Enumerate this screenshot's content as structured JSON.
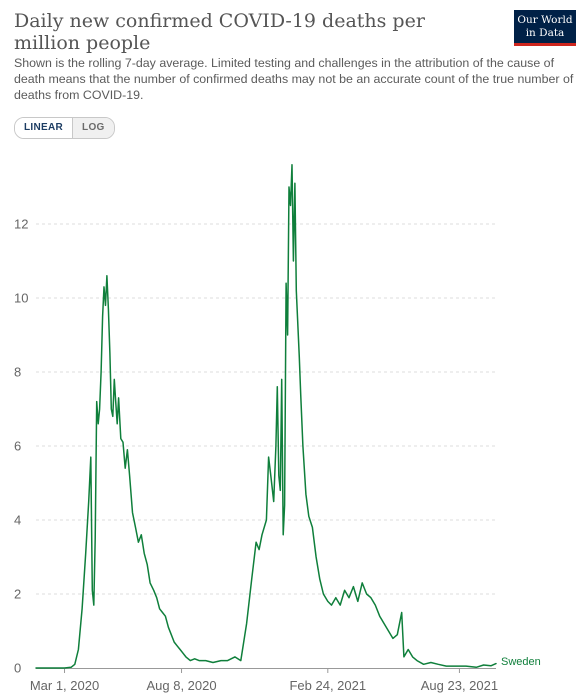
{
  "header": {
    "title": "Daily new confirmed COVID-19 deaths per million people",
    "subtitle": "Shown is the rolling 7-day average. Limited testing and challenges in the attribution of the cause of death means that the number of confirmed deaths may not be an accurate count of the true number of deaths from COVID-19.",
    "logo_line1": "Our World",
    "logo_line2": "in Data"
  },
  "controls": {
    "linear_label": "LINEAR",
    "log_label": "LOG",
    "selected": "LINEAR"
  },
  "colors": {
    "series": "#0f7f3b",
    "grid": "#dddddd",
    "axis": "#666666"
  },
  "chart_data": {
    "type": "line",
    "title": "Daily new confirmed COVID-19 deaths per million people",
    "xlabel": "",
    "ylabel": "",
    "x_range": [
      "2020-01-22",
      "2021-10-12"
    ],
    "ylim": [
      0,
      14
    ],
    "yticks": [
      0,
      2,
      4,
      6,
      8,
      10,
      12
    ],
    "xticks": [
      "Mar 1, 2020",
      "Aug 8, 2020",
      "Feb 24, 2021",
      "Aug 23, 2021"
    ],
    "xtick_dates": [
      "2020-03-01",
      "2020-08-08",
      "2021-02-24",
      "2021-08-23"
    ],
    "grid": "horizontal dashed",
    "legend": "label at end of line",
    "series": [
      {
        "name": "Sweden",
        "points": [
          [
            "2020-01-22",
            0
          ],
          [
            "2020-03-01",
            0
          ],
          [
            "2020-03-10",
            0.02
          ],
          [
            "2020-03-15",
            0.1
          ],
          [
            "2020-03-20",
            0.5
          ],
          [
            "2020-03-25",
            1.6
          ],
          [
            "2020-03-30",
            3.1
          ],
          [
            "2020-04-03",
            4.5
          ],
          [
            "2020-04-06",
            5.7
          ],
          [
            "2020-04-08",
            2.1
          ],
          [
            "2020-04-10",
            1.7
          ],
          [
            "2020-04-12",
            3.5
          ],
          [
            "2020-04-14",
            7.2
          ],
          [
            "2020-04-16",
            6.6
          ],
          [
            "2020-04-18",
            7.0
          ],
          [
            "2020-04-20",
            8.0
          ],
          [
            "2020-04-22",
            9.5
          ],
          [
            "2020-04-24",
            10.3
          ],
          [
            "2020-04-26",
            9.8
          ],
          [
            "2020-04-28",
            10.6
          ],
          [
            "2020-04-30",
            9.7
          ],
          [
            "2020-05-02",
            8.5
          ],
          [
            "2020-05-04",
            7.0
          ],
          [
            "2020-05-06",
            6.8
          ],
          [
            "2020-05-08",
            7.8
          ],
          [
            "2020-05-10",
            7.2
          ],
          [
            "2020-05-12",
            6.6
          ],
          [
            "2020-05-14",
            7.3
          ],
          [
            "2020-05-17",
            6.2
          ],
          [
            "2020-05-20",
            6.1
          ],
          [
            "2020-05-23",
            5.4
          ],
          [
            "2020-05-26",
            5.9
          ],
          [
            "2020-05-29",
            5.2
          ],
          [
            "2020-06-02",
            4.2
          ],
          [
            "2020-06-06",
            3.8
          ],
          [
            "2020-06-10",
            3.4
          ],
          [
            "2020-06-14",
            3.6
          ],
          [
            "2020-06-18",
            3.1
          ],
          [
            "2020-06-22",
            2.8
          ],
          [
            "2020-06-26",
            2.3
          ],
          [
            "2020-07-01",
            2.1
          ],
          [
            "2020-07-05",
            1.9
          ],
          [
            "2020-07-09",
            1.6
          ],
          [
            "2020-07-13",
            1.5
          ],
          [
            "2020-07-17",
            1.4
          ],
          [
            "2020-07-21",
            1.1
          ],
          [
            "2020-07-25",
            0.9
          ],
          [
            "2020-07-29",
            0.7
          ],
          [
            "2020-08-02",
            0.6
          ],
          [
            "2020-08-06",
            0.5
          ],
          [
            "2020-08-10",
            0.4
          ],
          [
            "2020-08-14",
            0.3
          ],
          [
            "2020-08-20",
            0.2
          ],
          [
            "2020-08-26",
            0.25
          ],
          [
            "2020-09-01",
            0.2
          ],
          [
            "2020-09-10",
            0.2
          ],
          [
            "2020-09-20",
            0.15
          ],
          [
            "2020-10-01",
            0.2
          ],
          [
            "2020-10-10",
            0.2
          ],
          [
            "2020-10-20",
            0.3
          ],
          [
            "2020-10-28",
            0.2
          ],
          [
            "2020-11-05",
            1.2
          ],
          [
            "2020-11-12",
            2.4
          ],
          [
            "2020-11-18",
            3.4
          ],
          [
            "2020-11-22",
            3.2
          ],
          [
            "2020-11-26",
            3.6
          ],
          [
            "2020-12-02",
            4.0
          ],
          [
            "2020-12-05",
            5.7
          ],
          [
            "2020-12-08",
            5.2
          ],
          [
            "2020-12-12",
            4.5
          ],
          [
            "2020-12-15",
            6.0
          ],
          [
            "2020-12-17",
            7.6
          ],
          [
            "2020-12-19",
            5.2
          ],
          [
            "2020-12-21",
            4.8
          ],
          [
            "2020-12-23",
            7.8
          ],
          [
            "2020-12-25",
            3.6
          ],
          [
            "2020-12-27",
            4.4
          ],
          [
            "2020-12-29",
            10.4
          ],
          [
            "2020-12-31",
            9.0
          ],
          [
            "2021-01-02",
            13.0
          ],
          [
            "2021-01-04",
            12.5
          ],
          [
            "2021-01-06",
            13.6
          ],
          [
            "2021-01-08",
            11.0
          ],
          [
            "2021-01-10",
            13.1
          ],
          [
            "2021-01-12",
            10.2
          ],
          [
            "2021-01-14",
            9.3
          ],
          [
            "2021-01-16",
            8.4
          ],
          [
            "2021-01-18",
            7.4
          ],
          [
            "2021-01-21",
            6.0
          ],
          [
            "2021-01-25",
            4.7
          ],
          [
            "2021-01-29",
            4.1
          ],
          [
            "2021-02-03",
            3.8
          ],
          [
            "2021-02-08",
            3.0
          ],
          [
            "2021-02-13",
            2.4
          ],
          [
            "2021-02-18",
            2.0
          ],
          [
            "2021-02-24",
            1.8
          ],
          [
            "2021-03-01",
            1.7
          ],
          [
            "2021-03-07",
            1.9
          ],
          [
            "2021-03-13",
            1.7
          ],
          [
            "2021-03-19",
            2.1
          ],
          [
            "2021-03-25",
            1.9
          ],
          [
            "2021-03-31",
            2.2
          ],
          [
            "2021-04-06",
            1.8
          ],
          [
            "2021-04-12",
            2.3
          ],
          [
            "2021-04-18",
            2.0
          ],
          [
            "2021-04-24",
            1.9
          ],
          [
            "2021-04-30",
            1.7
          ],
          [
            "2021-05-06",
            1.4
          ],
          [
            "2021-05-12",
            1.2
          ],
          [
            "2021-05-18",
            1.0
          ],
          [
            "2021-05-24",
            0.8
          ],
          [
            "2021-05-30",
            0.9
          ],
          [
            "2021-06-05",
            1.5
          ],
          [
            "2021-06-08",
            0.3
          ],
          [
            "2021-06-14",
            0.5
          ],
          [
            "2021-06-20",
            0.3
          ],
          [
            "2021-06-26",
            0.2
          ],
          [
            "2021-07-05",
            0.1
          ],
          [
            "2021-07-15",
            0.15
          ],
          [
            "2021-07-25",
            0.1
          ],
          [
            "2021-08-05",
            0.05
          ],
          [
            "2021-08-15",
            0.05
          ],
          [
            "2021-08-23",
            0.05
          ],
          [
            "2021-09-01",
            0.05
          ],
          [
            "2021-09-15",
            0.02
          ],
          [
            "2021-09-25",
            0.08
          ],
          [
            "2021-10-05",
            0.06
          ],
          [
            "2021-10-12",
            0.12
          ]
        ]
      }
    ]
  }
}
